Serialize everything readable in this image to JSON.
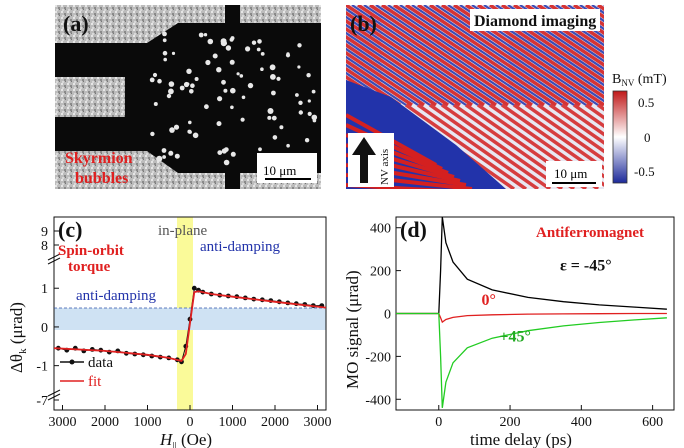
{
  "panel_a": {
    "label": "(a)",
    "caption_line1": "Skyrmion",
    "caption_line2": "bubbles",
    "scalebar": "10 μm"
  },
  "panel_b": {
    "label": "(b)",
    "title": "Diamond imaging",
    "axis_label": "NV axis",
    "scalebar": "10 μm",
    "colorbar_title_main": "B",
    "colorbar_title_sub": "NV",
    "colorbar_title_unit": " (mT)",
    "colorbar_ticks": [
      "0.5",
      "0",
      "-0.5"
    ],
    "colors": {
      "high": "#d42020",
      "mid": "#ffffff",
      "low": "#2233aa"
    }
  },
  "panel_c": {
    "label": "(c)",
    "in_plane": "in-plane",
    "sot_line1": "Spin-orbit",
    "sot_line2": "torque",
    "anti_damping_right": "anti-damping",
    "anti_damping_left": "anti-damping",
    "legend_data": "data",
    "legend_fit": "fit",
    "xlabel_main": "H",
    "xlabel_sub": "||",
    "xlabel_unit": " (Oe)",
    "ylabel_main": "Δθ",
    "ylabel_sub": "k",
    "ylabel_unit": " (μrad)",
    "colors": {
      "data": "#111111",
      "fit": "#e02020",
      "highlight": "#fafa99",
      "shade": "#cfe2f3"
    }
  },
  "panel_d": {
    "label": "(d)",
    "title": "Antiferromagnet",
    "xlabel": "time delay (ps)",
    "ylabel": "MO signal (μrad)",
    "colors": {
      "minus45": "#000000",
      "zero": "#e02020",
      "plus45": "#22cc22",
      "title": "#e02020"
    }
  },
  "chart_data": [
    {
      "type": "scatter",
      "panel": "(c)",
      "x_ticks": [
        "3000",
        "2000",
        "1000",
        "0",
        "1000",
        "2000",
        "3000"
      ],
      "y_ticks": [
        "-7",
        "-1",
        "0",
        "1",
        "8",
        "9"
      ],
      "xlim": [
        -3200,
        3200
      ],
      "ylim": [
        -1.5,
        1.6
      ],
      "axis_breaks": [
        1.6,
        -1.5
      ],
      "series": [
        {
          "name": "data",
          "x": [
            -3100,
            -2900,
            -2700,
            -2500,
            -2300,
            -2100,
            -1900,
            -1700,
            -1500,
            -1300,
            -1100,
            -900,
            -700,
            -500,
            -300,
            -200,
            -100,
            0,
            100,
            200,
            300,
            500,
            700,
            900,
            1100,
            1300,
            1500,
            1700,
            1900,
            2100,
            2300,
            2500,
            2700,
            2900,
            3100
          ],
          "y": [
            -0.55,
            -0.6,
            -0.55,
            -0.62,
            -0.58,
            -0.6,
            -0.65,
            -0.62,
            -0.68,
            -0.7,
            -0.72,
            -0.75,
            -0.78,
            -0.8,
            -0.85,
            -0.9,
            -0.5,
            0.2,
            1.0,
            0.95,
            0.9,
            0.85,
            0.82,
            0.8,
            0.78,
            0.75,
            0.72,
            0.7,
            0.68,
            0.65,
            0.62,
            0.6,
            0.58,
            0.55,
            0.55
          ]
        },
        {
          "name": "fit",
          "x": [
            -3200,
            -2000,
            -1000,
            -500,
            -200,
            -100,
            0,
            100,
            200,
            500,
            1000,
            2000,
            3200
          ],
          "y": [
            -0.55,
            -0.62,
            -0.72,
            -0.8,
            -0.88,
            -0.7,
            0.1,
            0.9,
            0.92,
            0.85,
            0.78,
            0.65,
            0.5
          ]
        }
      ]
    },
    {
      "type": "line",
      "panel": "(d)",
      "x_ticks": [
        "0",
        "200",
        "400",
        "600"
      ],
      "y_ticks": [
        "400",
        "200",
        "0",
        "-200",
        "-400"
      ],
      "xlim": [
        -120,
        660
      ],
      "ylim": [
        -450,
        450
      ],
      "series": [
        {
          "name": "ε = -45°",
          "x": [
            -120,
            0,
            5,
            10,
            20,
            40,
            80,
            150,
            250,
            350,
            450,
            550,
            640
          ],
          "y": [
            0,
            0,
            200,
            450,
            330,
            240,
            160,
            110,
            75,
            55,
            40,
            30,
            20
          ]
        },
        {
          "name": "0°",
          "x": [
            -120,
            0,
            5,
            10,
            20,
            40,
            80,
            150,
            250,
            350,
            450,
            550,
            640
          ],
          "y": [
            0,
            0,
            -20,
            -40,
            -28,
            -18,
            -10,
            -6,
            -3,
            -2,
            -1,
            0,
            0
          ]
        },
        {
          "name": "+45°",
          "x": [
            -120,
            0,
            5,
            10,
            20,
            40,
            80,
            150,
            250,
            350,
            450,
            550,
            640
          ],
          "y": [
            0,
            0,
            -200,
            -440,
            -320,
            -230,
            -160,
            -115,
            -80,
            -58,
            -42,
            -30,
            -20
          ]
        }
      ]
    }
  ]
}
